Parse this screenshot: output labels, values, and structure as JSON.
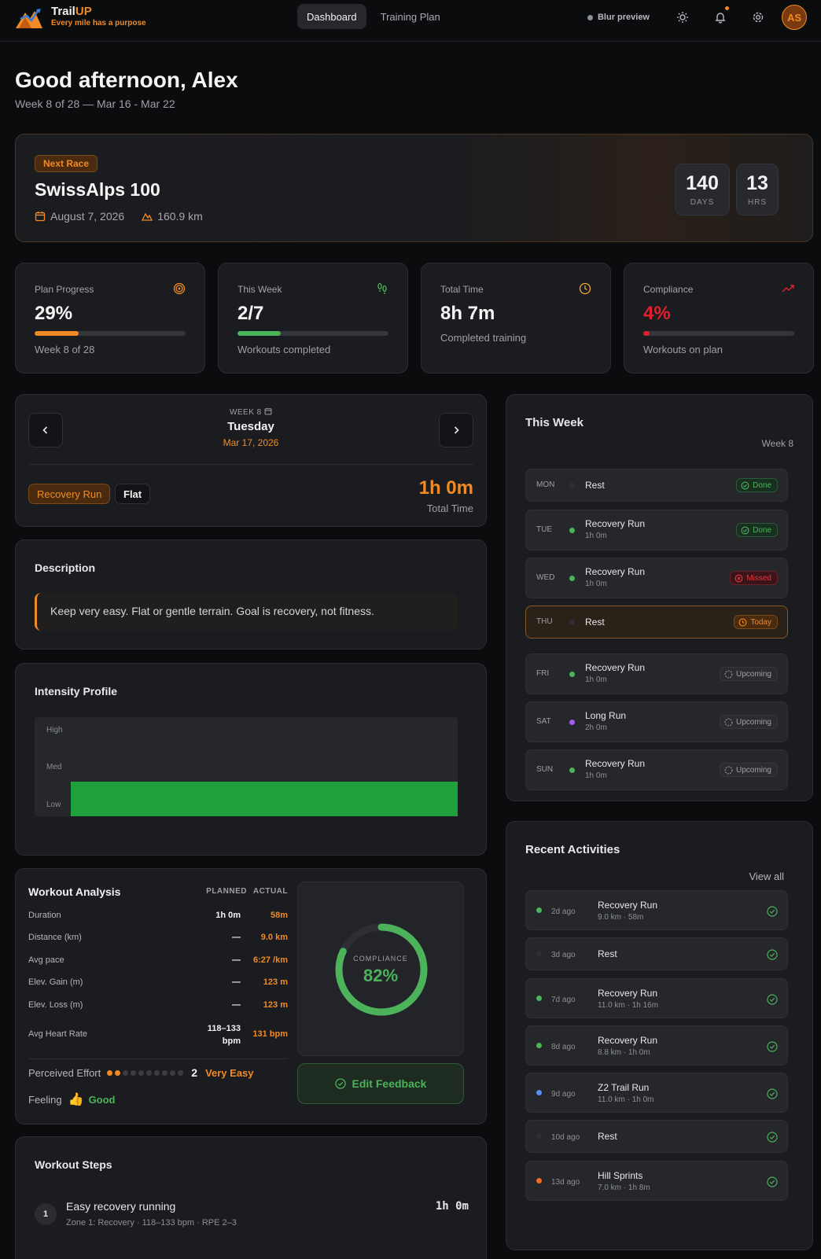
{
  "brand": {
    "name_main": "Trail",
    "name_accent": "UP",
    "tagline": "Every mile has a purpose"
  },
  "nav": {
    "tabs": [
      {
        "label": "Dashboard",
        "active": true
      },
      {
        "label": "Training Plan",
        "active": false
      }
    ]
  },
  "topbar": {
    "blur_label": "Blur preview",
    "avatar_initials": "AS"
  },
  "greeting": {
    "title": "Good afternoon, Alex",
    "subtitle": "Week 8 of 28 — Mar 16 - Mar 22"
  },
  "race": {
    "badge": "Next Race",
    "name": "SwissAlps 100",
    "date": "August 7, 2026",
    "distance": "160.9 km",
    "countdown": [
      {
        "value": "140",
        "unit": "DAYS"
      },
      {
        "value": "13",
        "unit": "HRS"
      }
    ]
  },
  "stats": [
    {
      "label": "Plan Progress",
      "value": "29%",
      "progress": 0.29,
      "footer": "Week 8 of 28",
      "icon": "target-icon",
      "color": "#f08a24"
    },
    {
      "label": "This Week",
      "value": "2/7",
      "progress": 0.286,
      "footer": "Workouts completed",
      "icon": "footprints-icon",
      "color": "#4cb35a"
    },
    {
      "label": "Total Time",
      "value": "8h 7m",
      "footer": "Completed training",
      "icon": "clock-icon",
      "color": "#f0a830"
    },
    {
      "label": "Compliance",
      "value": "4%",
      "progress": 0.04,
      "footer": "Workouts on plan",
      "icon": "trending-up-icon",
      "color": "#e0202c"
    }
  ],
  "day_view": {
    "week_label": "WEEK 8",
    "day_name": "Tuesday",
    "date": "Mar 17, 2026",
    "tags": [
      "Recovery Run",
      "Flat"
    ],
    "total_time": "1h 0m",
    "total_time_label": "Total Time"
  },
  "description": {
    "title": "Description",
    "text": "Keep very easy. Flat or gentle terrain. Goal is recovery, not fitness."
  },
  "intensity": {
    "title": "Intensity Profile",
    "levels": [
      "High",
      "Med",
      "Low"
    ]
  },
  "analysis": {
    "title": "Workout Analysis",
    "col_planned": "PLANNED",
    "col_actual": "ACTUAL",
    "rows": [
      {
        "label": "Duration",
        "planned": "1h 0m",
        "actual": "58m"
      },
      {
        "label": "Distance (km)",
        "planned": "—",
        "actual": "9.0 km"
      },
      {
        "label": "Avg pace",
        "planned": "—",
        "actual": "6:27 /km"
      },
      {
        "label": "Elev. Gain (m)",
        "planned": "—",
        "actual": "123 m"
      },
      {
        "label": "Elev. Loss (m)",
        "planned": "—",
        "actual": "123 m"
      },
      {
        "label": "Avg Heart Rate",
        "planned_line1": "118–133",
        "planned_line2": "bpm",
        "actual": "131 bpm"
      }
    ],
    "effort_label": "Perceived Effort",
    "effort_value": "2",
    "effort_of": 10,
    "effort_text": "Very Easy",
    "feeling_label": "Feeling",
    "feeling_emoji": "👍",
    "feeling_text": "Good",
    "compliance_label": "COMPLIANCE",
    "compliance_value": "82%",
    "compliance_fraction": 0.82,
    "edit_label": "Edit Feedback"
  },
  "steps": {
    "title": "Workout Steps",
    "items": [
      {
        "num": "1",
        "name": "Easy recovery running",
        "detail": "Zone 1: Recovery · 118–133 bpm · RPE 2–3",
        "duration": "1h 0m"
      }
    ]
  },
  "this_week": {
    "title": "This Week",
    "week_label": "Week 8",
    "days": [
      {
        "day": "MON",
        "title": "Rest",
        "sub": "",
        "status": "Done",
        "kind": "done",
        "dot": ""
      },
      {
        "day": "TUE",
        "title": "Recovery Run",
        "sub": "1h 0m",
        "status": "Done",
        "kind": "done",
        "dot": "#4cb35a"
      },
      {
        "day": "WED",
        "title": "Recovery Run",
        "sub": "1h 0m",
        "status": "Missed",
        "kind": "missed",
        "dot": "#4cb35a"
      },
      {
        "day": "THU",
        "title": "Rest",
        "sub": "",
        "status": "Today",
        "kind": "today",
        "dot": ""
      },
      {
        "day": "FRI",
        "title": "Recovery Run",
        "sub": "1h 0m",
        "status": "Upcoming",
        "kind": "up",
        "dot": "#4cb35a"
      },
      {
        "day": "SAT",
        "title": "Long Run",
        "sub": "2h 0m",
        "status": "Upcoming",
        "kind": "up",
        "dot": "#a35cf0"
      },
      {
        "day": "SUN",
        "title": "Recovery Run",
        "sub": "1h 0m",
        "status": "Upcoming",
        "kind": "up",
        "dot": "#4cb35a"
      }
    ]
  },
  "recent": {
    "title": "Recent Activities",
    "view_all": "View all",
    "items": [
      {
        "ago": "2d ago",
        "title": "Recovery Run",
        "sub": "9.0 km · 58m",
        "dot": "#4cb35a"
      },
      {
        "ago": "3d ago",
        "title": "Rest",
        "sub": "",
        "dot": ""
      },
      {
        "ago": "7d ago",
        "title": "Recovery Run",
        "sub": "11.0 km · 1h 16m",
        "dot": "#4cb35a"
      },
      {
        "ago": "8d ago",
        "title": "Recovery Run",
        "sub": "8.8 km · 1h 0m",
        "dot": "#4cb35a"
      },
      {
        "ago": "9d ago",
        "title": "Z2 Trail Run",
        "sub": "11.0 km · 1h 0m",
        "dot": "#5b8cf0"
      },
      {
        "ago": "10d ago",
        "title": "Rest",
        "sub": "",
        "dot": ""
      },
      {
        "ago": "13d ago",
        "title": "Hill Sprints",
        "sub": "7.0 km · 1h 8m",
        "dot": "#f06a24"
      }
    ]
  }
}
